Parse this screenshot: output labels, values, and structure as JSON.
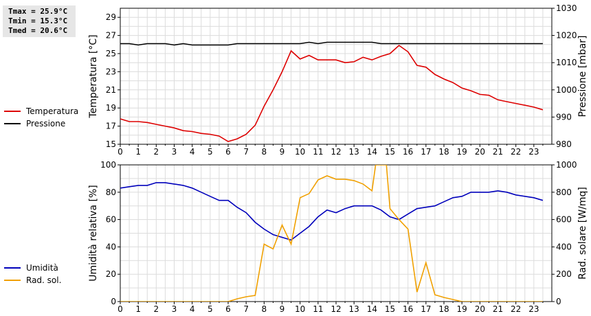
{
  "stats": {
    "tmax": "Tmax = 25.9°C",
    "tmin": "Tmin = 15.3°C",
    "tmed": "Tmed = 20.6°C"
  },
  "chart_data": [
    {
      "type": "line",
      "xlim": [
        0,
        24
      ],
      "x_ticks": [
        "0",
        "1",
        "2",
        "3",
        "4",
        "5",
        "6",
        "7",
        "8",
        "9",
        "10",
        "11",
        "12",
        "13",
        "14",
        "15",
        "16",
        "17",
        "18",
        "19",
        "20",
        "21",
        "22",
        "23"
      ],
      "ylabel": "Temperatura [°C]",
      "ylim": [
        15,
        30
      ],
      "y_ticks": [
        "15",
        "17",
        "19",
        "21",
        "23",
        "25",
        "27",
        "29"
      ],
      "y2label": "Pressione [mbar]",
      "y2lim": [
        980,
        1030
      ],
      "y2_ticks": [
        "980",
        "990",
        "1000",
        "1010",
        "1020",
        "1030"
      ],
      "grid": true,
      "legend_position": "left",
      "series": [
        {
          "name": "Temperatura",
          "color": "#dd0000",
          "axis": "left",
          "x": [
            0,
            0.5,
            1,
            1.5,
            2,
            2.5,
            3,
            3.5,
            4,
            4.5,
            5,
            5.5,
            6,
            6.5,
            7,
            7.5,
            8,
            8.5,
            9,
            9.5,
            10,
            10.5,
            11,
            11.5,
            12,
            12.5,
            13,
            13.5,
            14,
            14.5,
            15,
            15.5,
            16,
            16.5,
            17,
            17.5,
            18,
            18.5,
            19,
            19.5,
            20,
            20.5,
            21,
            21.5,
            22,
            22.5,
            23,
            23.5
          ],
          "values": [
            17.8,
            17.5,
            17.5,
            17.4,
            17.2,
            17.0,
            16.8,
            16.5,
            16.4,
            16.2,
            16.1,
            15.9,
            15.3,
            15.6,
            16.1,
            17.1,
            19.2,
            21.0,
            23.0,
            25.3,
            24.4,
            24.8,
            24.3,
            24.3,
            24.3,
            24.0,
            24.1,
            24.6,
            24.3,
            24.7,
            25.0,
            25.9,
            25.2,
            23.7,
            23.5,
            22.7,
            22.2,
            21.8,
            21.2,
            20.9,
            20.5,
            20.4,
            19.9,
            19.7,
            19.5,
            19.3,
            19.1,
            18.8
          ]
        },
        {
          "name": "Pressione",
          "color": "#000000",
          "axis": "right",
          "x": [
            0,
            0.5,
            1,
            1.5,
            2,
            2.5,
            3,
            3.5,
            4,
            4.5,
            5,
            5.5,
            6,
            6.5,
            7,
            7.5,
            8,
            8.5,
            9,
            9.5,
            10,
            10.5,
            11,
            11.5,
            12,
            12.5,
            13,
            13.5,
            14,
            14.5,
            15,
            15.5,
            16,
            16.5,
            17,
            17.5,
            18,
            18.5,
            19,
            19.5,
            20,
            20.5,
            21,
            21.5,
            22,
            22.5,
            23,
            23.5
          ],
          "values": [
            1017,
            1017,
            1016.5,
            1017,
            1017,
            1017,
            1016.5,
            1017,
            1016.5,
            1016.5,
            1016.5,
            1016.5,
            1016.5,
            1017,
            1017,
            1017,
            1017,
            1017,
            1017,
            1017,
            1017,
            1017.5,
            1017,
            1017.5,
            1017.5,
            1017.5,
            1017.5,
            1017.5,
            1017.5,
            1017,
            1017,
            1017,
            1017,
            1017,
            1017,
            1017,
            1017,
            1017,
            1017,
            1017,
            1017,
            1017,
            1017,
            1017,
            1017,
            1017,
            1017,
            1017
          ]
        }
      ]
    },
    {
      "type": "line",
      "xlim": [
        0,
        24
      ],
      "x_ticks": [
        "0",
        "1",
        "2",
        "3",
        "4",
        "5",
        "6",
        "7",
        "8",
        "9",
        "10",
        "11",
        "12",
        "13",
        "14",
        "15",
        "16",
        "17",
        "18",
        "19",
        "20",
        "21",
        "22",
        "23"
      ],
      "ylabel": "Umidità relativa [%]",
      "ylim": [
        0,
        100
      ],
      "y_ticks": [
        "0",
        "20",
        "40",
        "60",
        "80",
        "100"
      ],
      "y2label": "Rad. solare [W/mq]",
      "y2lim": [
        0,
        1000
      ],
      "y2_ticks": [
        "0",
        "200",
        "400",
        "600",
        "800",
        "1000"
      ],
      "grid": true,
      "legend_position": "left",
      "series": [
        {
          "name": "Umidità",
          "color": "#0000bb",
          "axis": "left",
          "x": [
            0,
            0.5,
            1,
            1.5,
            2,
            2.5,
            3,
            3.5,
            4,
            4.5,
            5,
            5.5,
            6,
            6.5,
            7,
            7.5,
            8,
            8.5,
            9,
            9.5,
            10,
            10.5,
            11,
            11.5,
            12,
            12.5,
            13,
            13.5,
            14,
            14.5,
            15,
            15.5,
            16,
            16.5,
            17,
            17.5,
            18,
            18.5,
            19,
            19.5,
            20,
            20.5,
            21,
            21.5,
            22,
            22.5,
            23,
            23.5
          ],
          "values": [
            83,
            84,
            85,
            85,
            87,
            87,
            86,
            85,
            83,
            80,
            77,
            74,
            74,
            69,
            65,
            58,
            53,
            49,
            47,
            45,
            50,
            55,
            62,
            67,
            65,
            68,
            70,
            70,
            70,
            67,
            62,
            60,
            64,
            68,
            69,
            70,
            73,
            76,
            77,
            80,
            80,
            80,
            81,
            80,
            78,
            77,
            76,
            74
          ]
        },
        {
          "name": "Rad. sol.",
          "color": "#f0a000",
          "axis": "right",
          "x": [
            0,
            0.5,
            1,
            1.5,
            2,
            2.5,
            3,
            3.5,
            4,
            4.5,
            5,
            5.5,
            6,
            6.5,
            7,
            7.5,
            8,
            8.5,
            9,
            9.5,
            10,
            10.5,
            11,
            11.5,
            12,
            12.5,
            13,
            13.5,
            14,
            14.2,
            14.8,
            15,
            15.5,
            16,
            16.5,
            17,
            17.5,
            18,
            18.5,
            19,
            19.5,
            20,
            20.5,
            21,
            21.5,
            22,
            22.5,
            23,
            23.5
          ],
          "values": [
            0,
            0,
            0,
            0,
            0,
            0,
            0,
            0,
            0,
            0,
            0,
            0,
            0,
            20,
            35,
            45,
            420,
            385,
            560,
            420,
            760,
            790,
            890,
            920,
            895,
            895,
            885,
            860,
            810,
            1000,
            1000,
            680,
            600,
            530,
            70,
            285,
            50,
            30,
            15,
            0,
            0,
            0,
            0,
            0,
            0,
            0,
            0,
            0,
            0
          ]
        }
      ]
    }
  ]
}
